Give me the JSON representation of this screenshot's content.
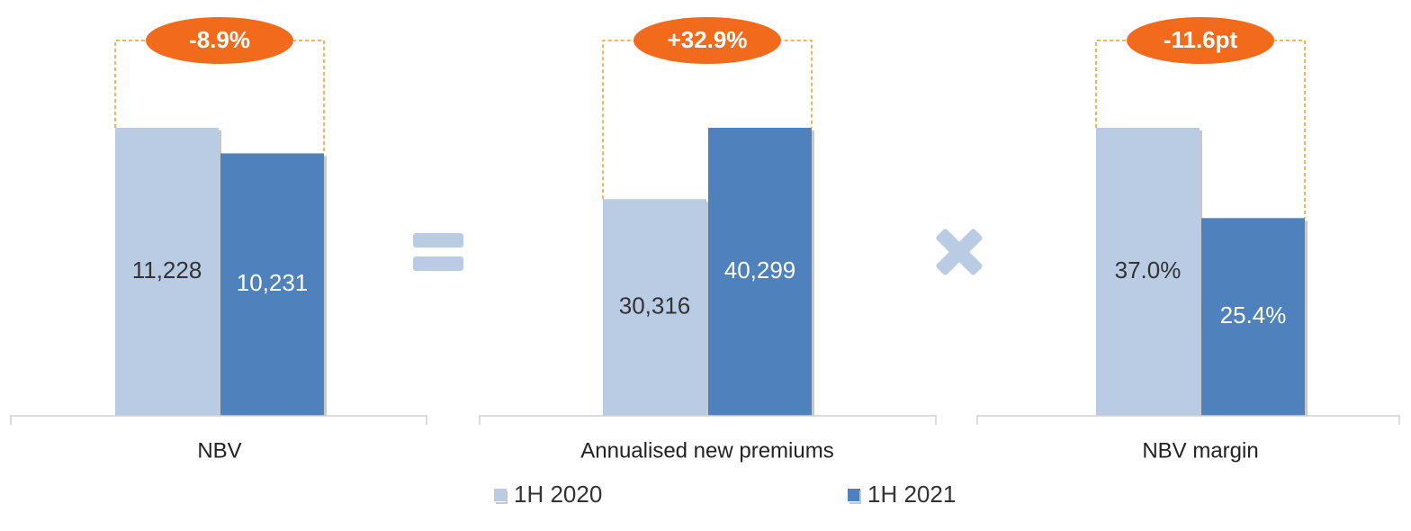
{
  "chart_data": [
    {
      "type": "bar",
      "category": "NBV",
      "values": [
        11228,
        10231
      ],
      "value_labels": [
        "11,228",
        "10,231"
      ],
      "change": "-8.9%"
    },
    {
      "type": "bar",
      "category": "Annualised new premiums",
      "values": [
        30316,
        40299
      ],
      "value_labels": [
        "30,316",
        "40,299"
      ],
      "change": "+32.9%"
    },
    {
      "type": "bar",
      "category": "NBV margin",
      "values": [
        37.0,
        25.4
      ],
      "value_labels": [
        "37.0%",
        "25.4%"
      ],
      "change": "-11.6pt"
    }
  ],
  "legend": {
    "series": [
      {
        "name": "1H 2020",
        "color": "#b9cce4"
      },
      {
        "name": "1H 2021",
        "color": "#4f81bd"
      }
    ]
  }
}
